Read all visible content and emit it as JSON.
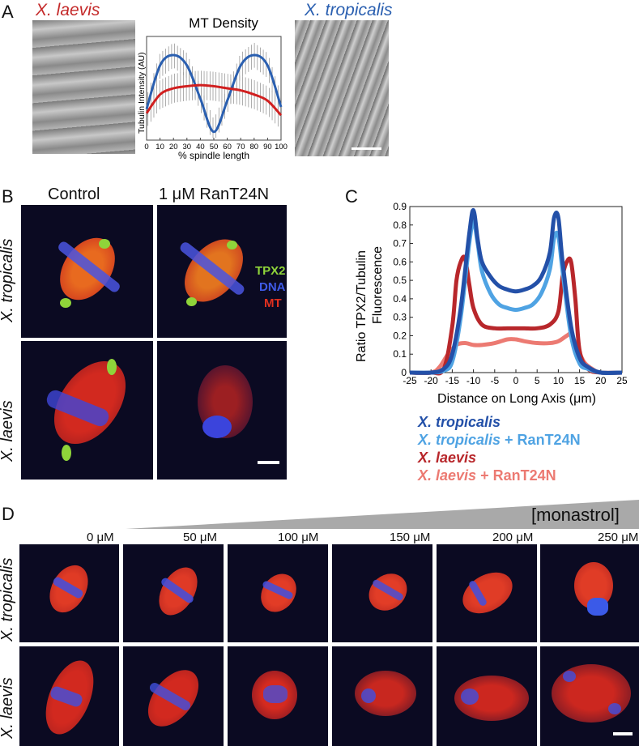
{
  "panels": {
    "A": "A",
    "B": "B",
    "C": "C",
    "D": "D"
  },
  "panelA": {
    "left_label": "X. laevis",
    "right_label": "X. tropicalis",
    "title": "MT Density",
    "ylabel": "Tubulin Intensity (AU)",
    "xlabel": "% spindle length",
    "xticks": [
      "0",
      "10",
      "20",
      "30",
      "40",
      "50",
      "60",
      "70",
      "80",
      "90",
      "100"
    ]
  },
  "panelB": {
    "col1": "Control",
    "col2": "1 μM RanT24N",
    "row1": "X. tropicalis",
    "row2": "X. laevis",
    "legend": [
      "TPX2",
      "DNA",
      "MT"
    ]
  },
  "panelD": {
    "concentration_label": "[monastrol]",
    "concentrations": [
      "0 μM",
      "50 μM",
      "100 μM",
      "150 μM",
      "200 μM",
      "250 μM"
    ],
    "row1": "X. tropicalis",
    "row2": "X. laevis"
  },
  "colors": {
    "tropicalis": "#2a5fb0",
    "laevis": "#c42a2a",
    "tropicalis_ran": "#4aa0e0",
    "laevis_ran": "#e87070"
  },
  "chart_data": [
    {
      "type": "line",
      "title": "MT Density",
      "xlabel": "% spindle length",
      "ylabel": "Tubulin Intensity (AU)",
      "xlim": [
        0,
        100
      ],
      "series": [
        {
          "name": "X. tropicalis",
          "color": "#2a5fb0",
          "x": [
            0,
            10,
            20,
            30,
            40,
            50,
            60,
            70,
            80,
            90,
            100
          ],
          "y": [
            0.3,
            0.72,
            0.82,
            0.72,
            0.4,
            0.08,
            0.38,
            0.72,
            0.82,
            0.72,
            0.32
          ]
        },
        {
          "name": "X. laevis",
          "color": "#d11f1f",
          "x": [
            0,
            10,
            20,
            30,
            40,
            50,
            60,
            70,
            80,
            90,
            100
          ],
          "y": [
            0.26,
            0.44,
            0.5,
            0.52,
            0.53,
            0.52,
            0.5,
            0.48,
            0.44,
            0.38,
            0.24
          ]
        }
      ]
    },
    {
      "type": "line",
      "ylabel": "Ratio TPX2/Tubulin Fluorescence",
      "xlabel": "Distance on Long Axis (μm)",
      "xlim": [
        -25,
        25
      ],
      "ylim": [
        0,
        0.9
      ],
      "xticks": [
        "-25",
        "-20",
        "-15",
        "-10",
        "-5",
        "0",
        "5",
        "10",
        "15",
        "20",
        "25"
      ],
      "yticks": [
        "0",
        "0.1",
        "0.2",
        "0.3",
        "0.4",
        "0.5",
        "0.6",
        "0.7",
        "0.8",
        "0.9"
      ],
      "series": [
        {
          "name": "X. tropicalis",
          "color": "#2350a8",
          "x": [
            -25,
            -20,
            -17,
            -15,
            -13,
            -11,
            -10,
            -9,
            -8,
            -6,
            -4,
            -2,
            0,
            2,
            4,
            6,
            8,
            9,
            10,
            11,
            13,
            15,
            17,
            20,
            25
          ],
          "y": [
            0,
            0,
            0.02,
            0.1,
            0.35,
            0.75,
            0.88,
            0.72,
            0.6,
            0.52,
            0.47,
            0.45,
            0.44,
            0.45,
            0.47,
            0.52,
            0.65,
            0.84,
            0.84,
            0.6,
            0.25,
            0.08,
            0.03,
            0,
            0
          ]
        },
        {
          "name": "X. tropicalis + RanT24N",
          "color": "#4fa3e3",
          "x": [
            -25,
            -20,
            -17,
            -15,
            -13,
            -11,
            -10,
            -9,
            -8,
            -6,
            -4,
            -2,
            0,
            2,
            4,
            6,
            8,
            9,
            10,
            11,
            13,
            15,
            17,
            20,
            25
          ],
          "y": [
            0,
            0,
            0.01,
            0.06,
            0.3,
            0.7,
            0.82,
            0.7,
            0.55,
            0.43,
            0.37,
            0.35,
            0.34,
            0.35,
            0.37,
            0.43,
            0.56,
            0.73,
            0.74,
            0.55,
            0.2,
            0.05,
            0.02,
            0,
            0
          ]
        },
        {
          "name": "X. laevis",
          "color": "#b8272b",
          "x": [
            -25,
            -20,
            -17,
            -15,
            -14,
            -13,
            -12,
            -11,
            -10,
            -8,
            -5,
            -2,
            0,
            2,
            5,
            8,
            10,
            11,
            12,
            13,
            14,
            15,
            17,
            20,
            25
          ],
          "y": [
            0,
            0,
            0.02,
            0.25,
            0.5,
            0.6,
            0.62,
            0.48,
            0.35,
            0.26,
            0.24,
            0.24,
            0.24,
            0.24,
            0.24,
            0.26,
            0.33,
            0.52,
            0.6,
            0.6,
            0.4,
            0.12,
            0.02,
            0,
            0
          ]
        },
        {
          "name": "X. laevis + RanT24N",
          "color": "#ec7a72",
          "x": [
            -25,
            -20,
            -18,
            -16,
            -14,
            -12,
            -10,
            -8,
            -5,
            -2,
            0,
            2,
            5,
            8,
            10,
            12,
            13,
            14,
            16,
            18,
            20,
            25
          ],
          "y": [
            0,
            0,
            0.03,
            0.1,
            0.15,
            0.16,
            0.15,
            0.15,
            0.16,
            0.18,
            0.18,
            0.17,
            0.16,
            0.16,
            0.17,
            0.2,
            0.21,
            0.16,
            0.06,
            0.02,
            0,
            0
          ]
        }
      ]
    }
  ]
}
